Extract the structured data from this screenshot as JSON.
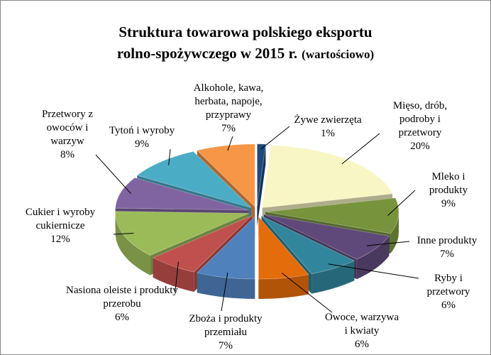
{
  "chart_data": {
    "type": "pie",
    "title_lines": [
      "Struktura towarowa polskiego eksportu",
      "rolno-spożywczego w 2015 r."
    ],
    "title_suffix": "(wartościowo)",
    "categories": [
      "Żywe zwierzęta",
      "Mięso, drób, podroby i przetwory",
      "Mleko i produkty",
      "Inne produkty",
      "Ryby i przetwory",
      "Owoce, warzywa i kwiaty",
      "Zboża i produkty przemiału",
      "Nasiona oleiste i produkty przerobu",
      "Cukier i wyroby cukiernicze",
      "Przetwory z owoców i warzyw",
      "Tytoń i wyroby",
      "Alkohole, kawa, herbata, napoje, przyprawy"
    ],
    "values": [
      1,
      20,
      9,
      7,
      6,
      6,
      7,
      6,
      12,
      8,
      9,
      7
    ],
    "value_labels": [
      "1%",
      "20%",
      "9%",
      "7%",
      "6%",
      "6%",
      "7%",
      "6%",
      "12%",
      "8%",
      "9%",
      "7%"
    ],
    "colors": [
      "#1f497d",
      "#f8f6c5",
      "#77933c",
      "#5f497a",
      "#31859c",
      "#e46c0a",
      "#4f81bd",
      "#c0504d",
      "#9bbb59",
      "#8064a2",
      "#4bacc6",
      "#f79646"
    ]
  }
}
